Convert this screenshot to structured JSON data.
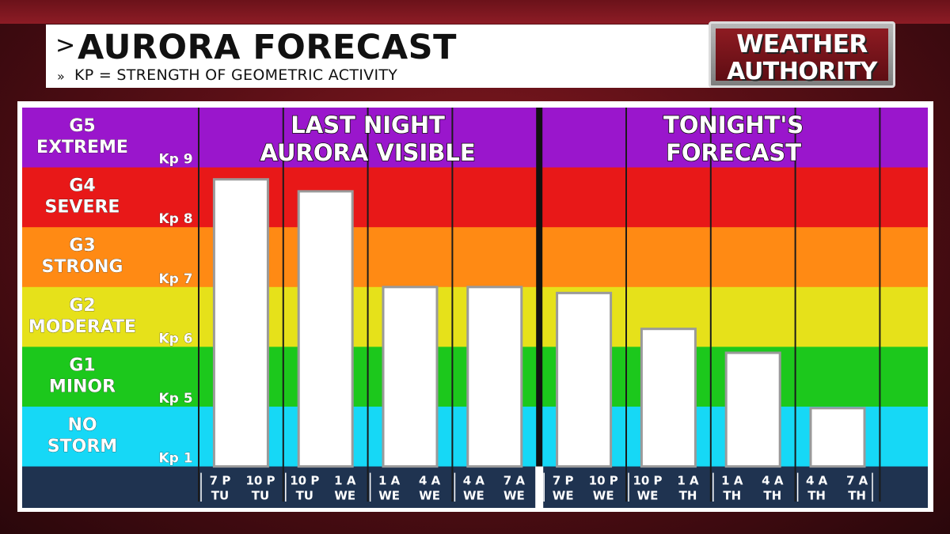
{
  "header": {
    "title": "AURORA FORECAST",
    "subtitle": "KP = STRENGTH OF GEOMETRIC ACTIVITY",
    "title_chevron": ">",
    "subtitle_chevron": "»"
  },
  "logo": {
    "line1": "WEATHER",
    "line2": "AUTHORITY"
  },
  "chart_data": {
    "type": "bar",
    "title": "AURORA FORECAST",
    "ylabel": "Kp",
    "ylim": [
      1,
      9.8
    ],
    "sections": [
      {
        "title_lines": [
          "LAST NIGHT",
          "AURORA VISIBLE"
        ]
      },
      {
        "title_lines": [
          "TONIGHT'S",
          "FORECAST"
        ]
      }
    ],
    "bands": [
      {
        "g": "G5",
        "name": "EXTREME",
        "color": "#9a16cc"
      },
      {
        "g": "G4",
        "name": "SEVERE",
        "color": "#e81818"
      },
      {
        "g": "G3",
        "name": "STRONG",
        "color": "#ff8a14"
      },
      {
        "g": "G2",
        "name": "MODERATE",
        "color": "#e6e11a"
      },
      {
        "g": "G1",
        "name": "MINOR",
        "color": "#1cc81c"
      },
      {
        "g": "NO",
        "name": "STORM",
        "color": "#16d8f6"
      }
    ],
    "kp_labels": [
      "Kp 9",
      "Kp 8",
      "Kp 7",
      "Kp 6",
      "Kp 5",
      "Kp 1"
    ],
    "categories": [
      {
        "from": "7 P",
        "from_day": "TU",
        "to": "10 P",
        "to_day": "TU"
      },
      {
        "from": "10 P",
        "from_day": "TU",
        "to": "1 A",
        "to_day": "WE"
      },
      {
        "from": "1 A",
        "from_day": "WE",
        "to": "4 A",
        "to_day": "WE"
      },
      {
        "from": "4 A",
        "from_day": "WE",
        "to": "7 A",
        "to_day": "WE"
      },
      {
        "from": "7 P",
        "from_day": "WE",
        "to": "10 P",
        "to_day": "WE"
      },
      {
        "from": "10 P",
        "from_day": "WE",
        "to": "1 A",
        "to_day": "TH"
      },
      {
        "from": "1 A",
        "from_day": "TH",
        "to": "4 A",
        "to_day": "TH"
      },
      {
        "from": "4 A",
        "from_day": "TH",
        "to": "7 A",
        "to_day": "TH"
      }
    ],
    "values": [
      8.8,
      8.6,
      7.0,
      7.0,
      6.9,
      6.3,
      5.9,
      4.9
    ],
    "section_split": 4
  }
}
